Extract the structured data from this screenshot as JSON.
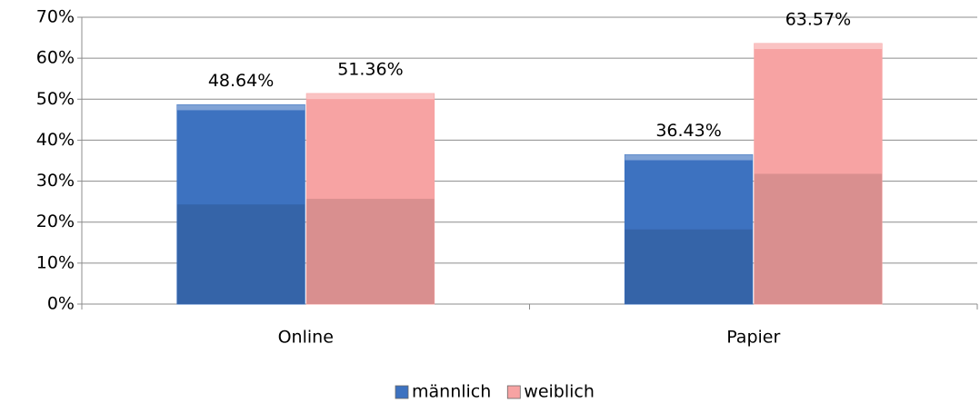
{
  "chart_data": {
    "type": "bar",
    "categories": [
      "Online",
      "Papier"
    ],
    "series": [
      {
        "name": "männlich",
        "color": "#3d72c0",
        "values": [
          48.64,
          36.43
        ],
        "value_labels": [
          "48.64%",
          "36.43%"
        ]
      },
      {
        "name": "weiblich",
        "color": "#f7a3a3",
        "values": [
          51.36,
          63.57
        ],
        "value_labels": [
          "51.36%",
          "63.57%"
        ]
      }
    ],
    "ylim": [
      0,
      70
    ],
    "yticks": [
      {
        "value": 0,
        "label": "0%"
      },
      {
        "value": 10,
        "label": "10%"
      },
      {
        "value": 20,
        "label": "20%"
      },
      {
        "value": 30,
        "label": "30%"
      },
      {
        "value": 40,
        "label": "40%"
      },
      {
        "value": 50,
        "label": "50%"
      },
      {
        "value": 60,
        "label": "60%"
      },
      {
        "value": 70,
        "label": "70%"
      }
    ],
    "grid": true,
    "legend": "bottom"
  }
}
